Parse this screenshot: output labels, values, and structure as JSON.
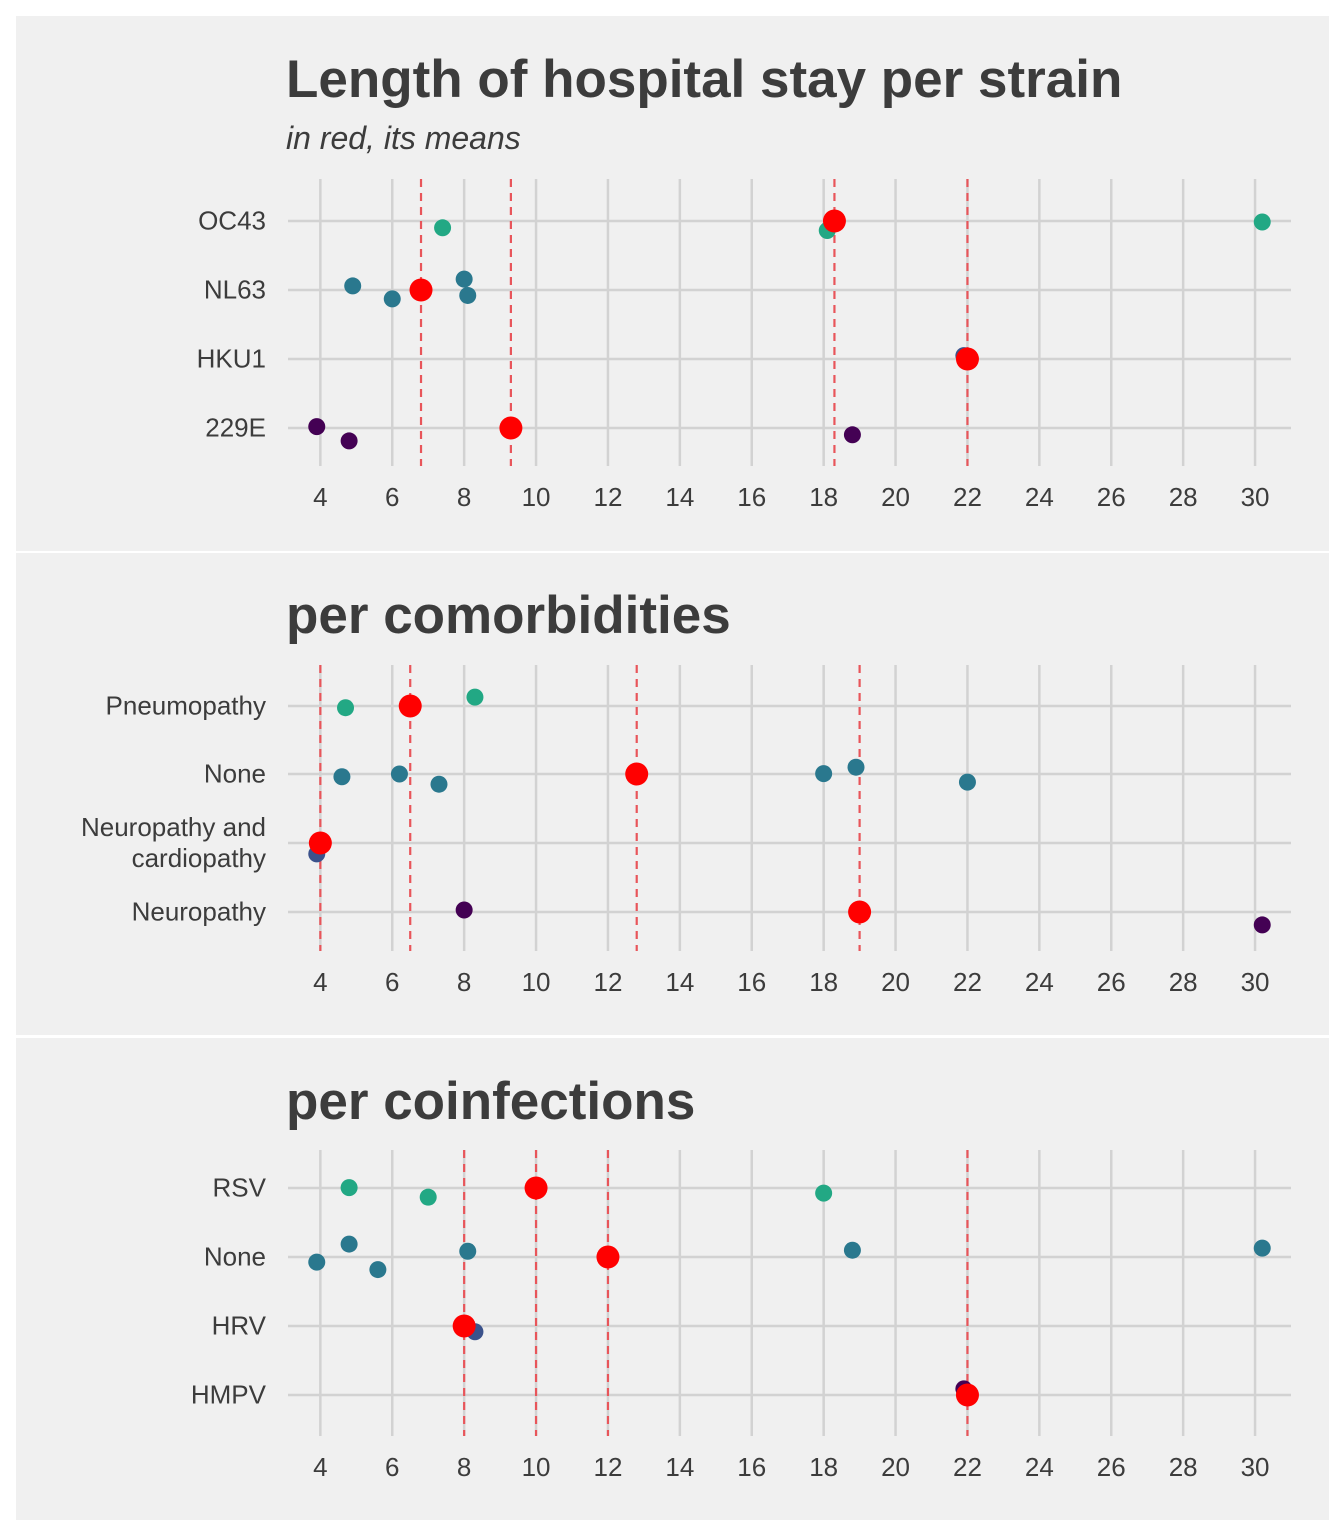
{
  "colors": {
    "background": "#f0f0f0",
    "grid": "#d2d2d2",
    "text": "#3c3c3c",
    "mean": "#ff0000",
    "mean_line": "#e8555a",
    "palette": [
      "#440154",
      "#3b528b",
      "#21908c",
      "#2a788e",
      "#22a884"
    ]
  },
  "chart_data": [
    {
      "type": "scatter",
      "title": "Length of hospital stay per strain",
      "subtitle": "in red, its means",
      "xlim": [
        3.1,
        31.0
      ],
      "xticks": [
        4,
        6,
        8,
        10,
        12,
        14,
        16,
        18,
        20,
        22,
        24,
        26,
        28,
        30
      ],
      "categories": [
        "OC43",
        "NL63",
        "HKU1",
        "229E"
      ],
      "grid": true,
      "points": [
        {
          "category": "OC43",
          "x": 7.4,
          "jitter": -0.2,
          "color": "#22a884"
        },
        {
          "category": "OC43",
          "x": 18.1,
          "jitter": -0.28,
          "color": "#22a884"
        },
        {
          "category": "OC43",
          "x": 30.2,
          "jitter": -0.03,
          "color": "#22a884"
        },
        {
          "category": "NL63",
          "x": 4.9,
          "jitter": 0.12,
          "color": "#2a788e"
        },
        {
          "category": "NL63",
          "x": 8.0,
          "jitter": 0.32,
          "color": "#2a788e"
        },
        {
          "category": "NL63",
          "x": 6.0,
          "jitter": -0.26,
          "color": "#2a788e"
        },
        {
          "category": "NL63",
          "x": 8.1,
          "jitter": -0.16,
          "color": "#2a788e"
        },
        {
          "category": "HKU1",
          "x": 21.9,
          "jitter": 0.1,
          "color": "#3b528b"
        },
        {
          "category": "229E",
          "x": 3.9,
          "jitter": 0.04,
          "color": "#440154"
        },
        {
          "category": "229E",
          "x": 4.8,
          "jitter": -0.38,
          "color": "#440154"
        },
        {
          "category": "229E",
          "x": 18.8,
          "jitter": -0.2,
          "color": "#440154"
        }
      ],
      "means": [
        {
          "category": "OC43",
          "x": 18.3
        },
        {
          "category": "NL63",
          "x": 6.8
        },
        {
          "category": "HKU1",
          "x": 22.0
        },
        {
          "category": "229E",
          "x": 9.3
        }
      ]
    },
    {
      "type": "scatter",
      "title": "per comorbidities",
      "subtitle": "",
      "xlim": [
        3.1,
        31.0
      ],
      "xticks": [
        4,
        6,
        8,
        10,
        12,
        14,
        16,
        18,
        20,
        22,
        24,
        26,
        28,
        30
      ],
      "categories": [
        "Pneumopathy",
        "None",
        "Neuropathy and\ncardiopathy",
        "Neuropathy"
      ],
      "grid": true,
      "points": [
        {
          "category": "Pneumopathy",
          "x": 4.7,
          "jitter": -0.05,
          "color": "#22a884"
        },
        {
          "category": "Pneumopathy",
          "x": 8.3,
          "jitter": 0.26,
          "color": "#22a884"
        },
        {
          "category": "None",
          "x": 4.6,
          "jitter": -0.08,
          "color": "#2a788e"
        },
        {
          "category": "None",
          "x": 6.2,
          "jitter": 0.0,
          "color": "#2a788e"
        },
        {
          "category": "None",
          "x": 7.3,
          "jitter": -0.3,
          "color": "#2a788e"
        },
        {
          "category": "None",
          "x": 18.0,
          "jitter": 0.01,
          "color": "#2a788e"
        },
        {
          "category": "None",
          "x": 18.9,
          "jitter": 0.2,
          "color": "#2a788e"
        },
        {
          "category": "None",
          "x": 22.0,
          "jitter": -0.24,
          "color": "#2a788e"
        },
        {
          "category": "Neuropathy and\ncardiopathy",
          "x": 3.9,
          "jitter": -0.32,
          "color": "#3b528b"
        },
        {
          "category": "Neuropathy",
          "x": 8.0,
          "jitter": 0.06,
          "color": "#440154"
        },
        {
          "category": "Neuropathy",
          "x": 30.2,
          "jitter": -0.38,
          "color": "#440154"
        }
      ],
      "means": [
        {
          "category": "Pneumopathy",
          "x": 6.5
        },
        {
          "category": "None",
          "x": 12.8
        },
        {
          "category": "Neuropathy and\ncardiopathy",
          "x": 4.0
        },
        {
          "category": "Neuropathy",
          "x": 19.0
        }
      ]
    },
    {
      "type": "scatter",
      "title": "per coinfections",
      "subtitle": "",
      "xlim": [
        3.1,
        31.0
      ],
      "xticks": [
        4,
        6,
        8,
        10,
        12,
        14,
        16,
        18,
        20,
        22,
        24,
        26,
        28,
        30
      ],
      "categories": [
        "RSV",
        "None",
        "HRV",
        "HMPV"
      ],
      "grid": true,
      "points": [
        {
          "category": "RSV",
          "x": 4.8,
          "jitter": 0.01,
          "color": "#22a884"
        },
        {
          "category": "RSV",
          "x": 7.0,
          "jitter": -0.27,
          "color": "#22a884"
        },
        {
          "category": "RSV",
          "x": 18.0,
          "jitter": -0.15,
          "color": "#22a884"
        },
        {
          "category": "None",
          "x": 4.8,
          "jitter": 0.38,
          "color": "#2a788e"
        },
        {
          "category": "None",
          "x": 8.1,
          "jitter": 0.17,
          "color": "#2a788e"
        },
        {
          "category": "None",
          "x": 18.8,
          "jitter": 0.2,
          "color": "#2a788e"
        },
        {
          "category": "None",
          "x": 30.2,
          "jitter": 0.26,
          "color": "#2a788e"
        },
        {
          "category": "None",
          "x": 3.9,
          "jitter": -0.15,
          "color": "#2a788e"
        },
        {
          "category": "None",
          "x": 5.6,
          "jitter": -0.37,
          "color": "#2a788e"
        },
        {
          "category": "HRV",
          "x": 8.3,
          "jitter": -0.17,
          "color": "#3b528b"
        },
        {
          "category": "HMPV",
          "x": 21.9,
          "jitter": 0.18,
          "color": "#440154"
        }
      ],
      "means": [
        {
          "category": "RSV",
          "x": 10.0
        },
        {
          "category": "None",
          "x": 12.0
        },
        {
          "category": "HRV",
          "x": 8.0
        },
        {
          "category": "HMPV",
          "x": 22.0
        }
      ]
    }
  ]
}
